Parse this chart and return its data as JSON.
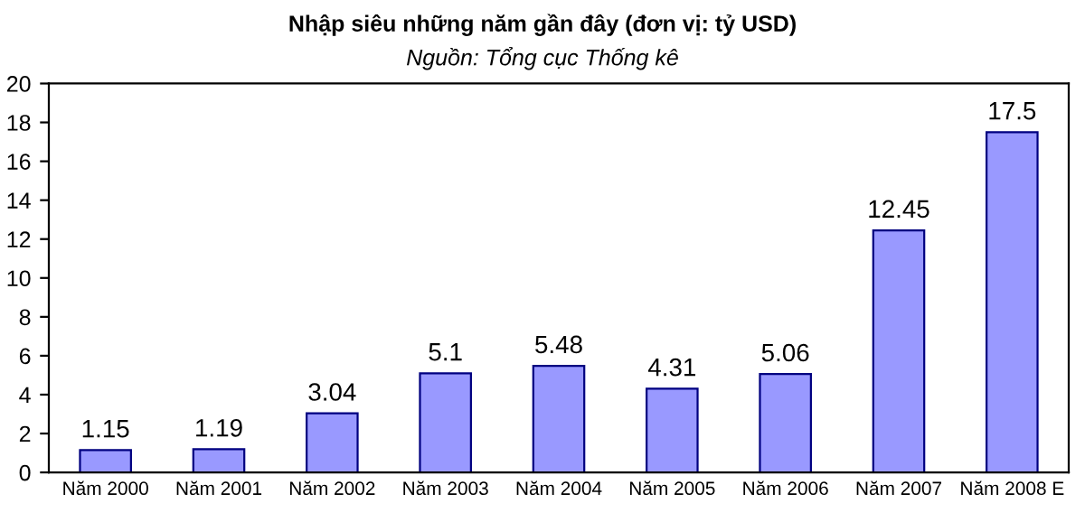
{
  "chart_data": {
    "type": "bar",
    "title": "Nhập siêu những năm gần đây (đơn vị: tỷ USD)",
    "subtitle": "Nguồn: Tổng cục Thống kê",
    "categories": [
      "Năm 2000",
      "Năm 2001",
      "Năm 2002",
      "Năm 2003",
      "Năm 2004",
      "Năm 2005",
      "Năm 2006",
      "Năm 2007",
      "Năm 2008 E"
    ],
    "values": [
      1.15,
      1.19,
      3.04,
      5.1,
      5.48,
      4.31,
      5.06,
      12.45,
      17.5
    ],
    "color": "#9999ff",
    "ylim": [
      0,
      20
    ],
    "yticks": [
      0,
      2,
      4,
      6,
      8,
      10,
      12,
      14,
      16,
      18,
      20
    ],
    "grid": false,
    "data_labels": true
  }
}
